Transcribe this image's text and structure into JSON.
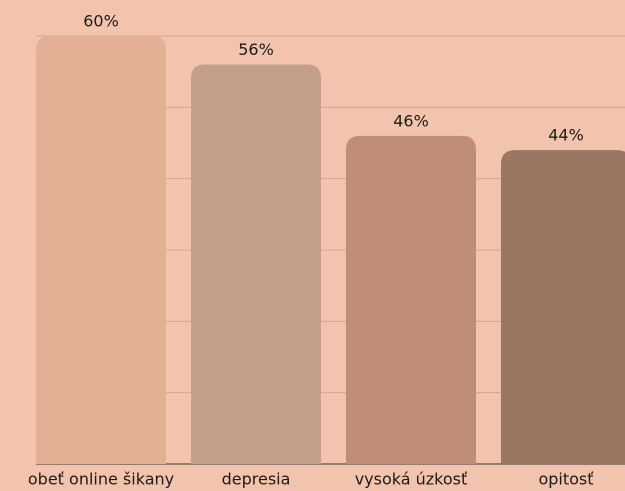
{
  "chart_data": {
    "type": "bar",
    "categories": [
      "obeť online šikany",
      "depresia",
      "vysoká úzkosť",
      "opitosť"
    ],
    "values": [
      60,
      56,
      46,
      44
    ],
    "value_labels": [
      "60%",
      "56%",
      "46%",
      "44%"
    ],
    "colors": [
      "#e4b093",
      "#c49f8a",
      "#c08e76",
      "#9a7663"
    ],
    "ylim": [
      0,
      60
    ],
    "yticks": [
      0,
      10,
      20,
      30,
      40,
      50,
      60
    ],
    "grid": true
  }
}
